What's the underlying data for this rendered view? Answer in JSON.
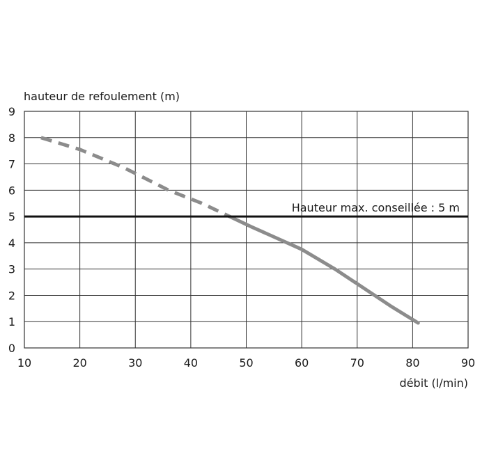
{
  "chart_data": {
    "type": "line",
    "ylabel": "hauteur de refoulement (m)",
    "xlabel": "débit (l/min)",
    "xlim": [
      10,
      90
    ],
    "ylim": [
      0,
      9
    ],
    "x_ticks": [
      10,
      20,
      30,
      40,
      50,
      60,
      70,
      80,
      90
    ],
    "y_ticks": [
      0,
      1,
      2,
      3,
      4,
      5,
      6,
      7,
      8,
      9
    ],
    "grid": true,
    "series": [
      {
        "style": "dashed",
        "color": "#8c8c8c",
        "points": [
          [
            13,
            8.0
          ],
          [
            20,
            7.55
          ],
          [
            28,
            6.85
          ],
          [
            36,
            6.0
          ],
          [
            42,
            5.5
          ],
          [
            47,
            5.0
          ]
        ]
      },
      {
        "style": "solid",
        "color": "#8c8c8c",
        "points": [
          [
            47,
            5.0
          ],
          [
            51,
            4.6
          ],
          [
            60,
            3.75
          ],
          [
            66,
            3.0
          ],
          [
            71,
            2.3
          ],
          [
            76,
            1.6
          ],
          [
            81,
            0.95
          ]
        ]
      }
    ],
    "reference_line": {
      "y": 5,
      "color": "#111111",
      "label": "Hauteur max. conseillée : 5 m"
    }
  }
}
